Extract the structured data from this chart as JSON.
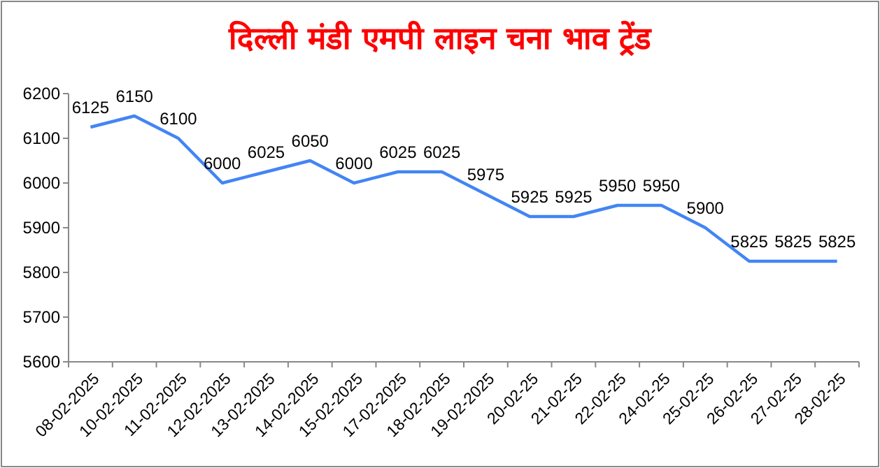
{
  "chart_data": {
    "type": "line",
    "title": "दिल्ली मंडी एमपी लाइन चना भाव ट्रेंड",
    "categories": [
      "08-02-2025",
      "10-02-2025",
      "11-02-2025",
      "12-02-2025",
      "13-02-2025",
      "14-02-2025",
      "15-02-2025",
      "17-02-2025",
      "18-02-2025",
      "19-02-2025",
      "20-02-25",
      "21-02-25",
      "22-02-25",
      "24-02-25",
      "25-02-25",
      "26-02-25",
      "27-02-25",
      "28-02-25"
    ],
    "series": [
      {
        "color": "#4285f4",
        "values": [
          6125,
          6150,
          6100,
          6000,
          6025,
          6050,
          6000,
          6025,
          6025,
          5975,
          5925,
          5925,
          5950,
          5950,
          5900,
          5825,
          5825,
          5825
        ]
      }
    ],
    "ylim": [
      5600,
      6200
    ],
    "yticks": [
      5600,
      5700,
      5800,
      5900,
      6000,
      6100,
      6200
    ],
    "grid": false,
    "marker": "none",
    "line_style": "solid",
    "data_labels": true
  }
}
